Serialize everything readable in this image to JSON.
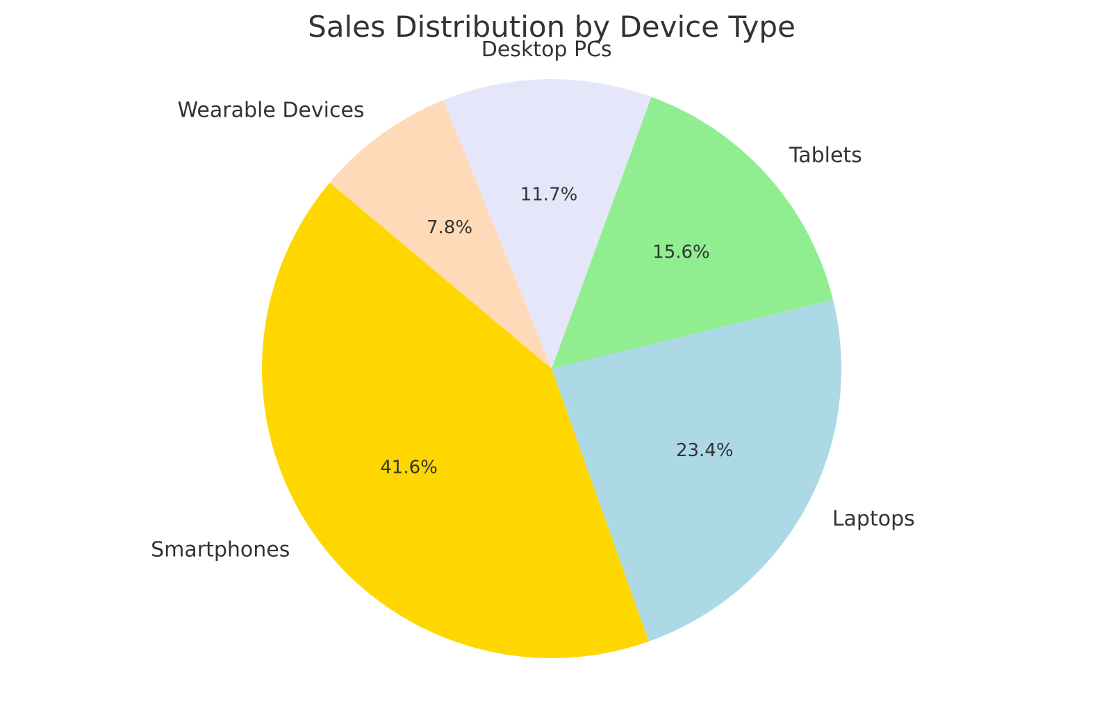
{
  "chart_data": {
    "type": "pie",
    "title": "Sales Distribution by Device Type",
    "categories": [
      "Smartphones",
      "Laptops",
      "Tablets",
      "Desktop PCs",
      "Wearable Devices"
    ],
    "values": [
      41.6,
      23.4,
      15.6,
      11.7,
      7.8
    ],
    "value_labels": [
      "41.6%",
      "23.4%",
      "15.6%",
      "11.7%",
      "7.8%"
    ],
    "colors": [
      "#FFD700",
      "#ADD8E6",
      "#90EE90",
      "#E6E6FA",
      "#FFDAB9"
    ],
    "start_angle_deg": 140,
    "direction": "counterclockwise",
    "legend": "none"
  }
}
